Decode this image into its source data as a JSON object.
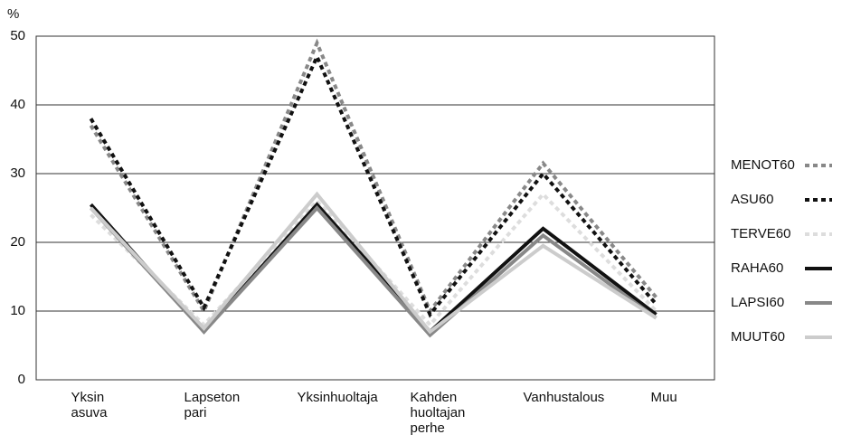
{
  "chart_data": {
    "type": "line",
    "ylabel": "%",
    "categories": [
      "Yksin asuva",
      "Lapseton pari",
      "Yksinhuoltaja",
      "Kahden huoltajan perhe",
      "Vanhustalous",
      "Muu"
    ],
    "series": [
      {
        "name": "MENOT60",
        "color": "#888888",
        "style": "dotted",
        "values": [
          37,
          10,
          49,
          10,
          31.5,
          12
        ]
      },
      {
        "name": "ASU60",
        "color": "#111111",
        "style": "dotted",
        "values": [
          38,
          10.5,
          47,
          9.5,
          30,
          11
        ]
      },
      {
        "name": "TERVE60",
        "color": "#dddddd",
        "style": "dotted",
        "values": [
          24,
          8,
          26,
          8,
          27,
          10
        ]
      },
      {
        "name": "RAHA60",
        "color": "#111111",
        "style": "solid",
        "values": [
          25.5,
          7,
          25.5,
          7,
          22,
          9.5
        ]
      },
      {
        "name": "LAPSI60",
        "color": "#888888",
        "style": "solid",
        "values": [
          25,
          7,
          25,
          6.5,
          21,
          9
        ]
      },
      {
        "name": "MUUT60",
        "color": "#cccccc",
        "style": "solid",
        "values": [
          25,
          7.5,
          27,
          7,
          19.5,
          9
        ]
      }
    ],
    "ylim": [
      0,
      50
    ],
    "yticks": [
      0,
      10,
      20,
      30,
      40,
      50
    ],
    "grid": true,
    "legend": "right"
  }
}
